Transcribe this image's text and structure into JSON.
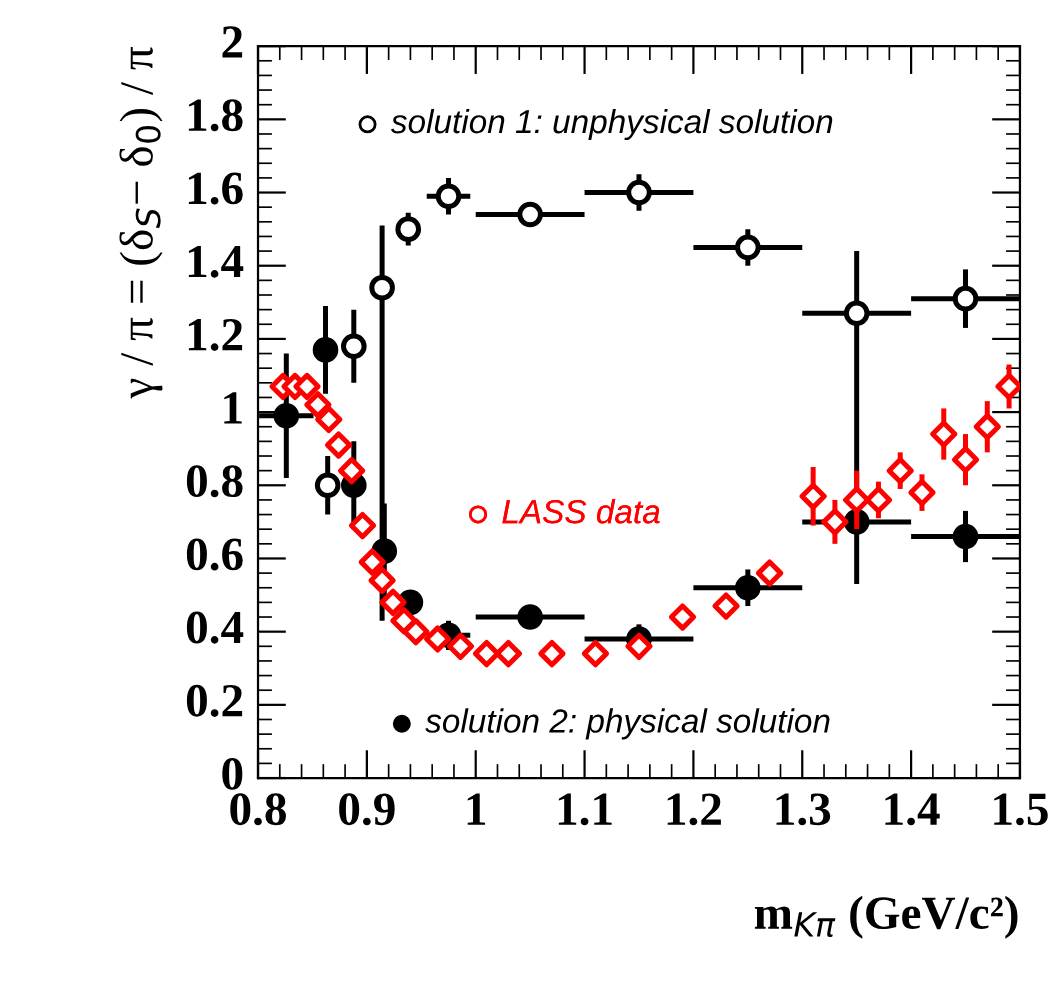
{
  "chart_data": {
    "type": "scatter",
    "xlabel": "m$_{Kπ}$ (GeV/c²)",
    "ylabel": "γ / π = (δ$_{S}$− δ$_{0}$) / π",
    "xlim": [
      0.8,
      1.5
    ],
    "xticks": [
      0.8,
      0.9,
      1,
      1.1,
      1.2,
      1.3,
      1.4,
      1.5
    ],
    "ylim": [
      0,
      2
    ],
    "yticks": [
      0,
      0.2,
      0.4,
      0.6,
      0.8,
      1,
      1.2,
      1.4,
      1.6,
      1.8,
      2
    ],
    "grid": false,
    "legend": "bottom left",
    "series": [
      {
        "name": "solution 1: unphysical solution",
        "color": "#000000",
        "marker": "circle",
        "x": [
          0.864,
          0.888,
          0.914,
          0.938,
          0.975,
          1.05,
          1.15,
          1.25,
          1.35,
          1.45
        ],
        "values": [
          0.8,
          1.18,
          1.34,
          1.5,
          1.59,
          1.54,
          1.6,
          1.45,
          1.27,
          1.31
        ],
        "errors": [
          0.08,
          0.1,
          [
            0.43,
            1.51
          ],
          0.045,
          0.05,
          0.03,
          0.05,
          0.05,
          [
            1.03,
            1.44
          ],
          0.08
        ],
        "xerrors": [
          null,
          null,
          null,
          null,
          0.02,
          0.05,
          0.05,
          0.05,
          0.05,
          0.05
        ]
      },
      {
        "name": "solution 2: physical solution",
        "color": "#000000",
        "marker": "circle",
        "x": [
          0.826,
          0.862,
          0.888,
          0.916,
          0.94,
          0.975,
          1.05,
          1.15,
          1.25,
          1.35,
          1.45
        ],
        "values": [
          0.99,
          1.17,
          0.8,
          0.62,
          0.48,
          0.39,
          0.44,
          0.38,
          0.52,
          0.7,
          0.66
        ],
        "errors": [
          0.17,
          0.12,
          0.12,
          0.13,
          0.03,
          0.04,
          0.03,
          0.04,
          0.05,
          [
            0.53,
            1.03
          ],
          0.07
        ],
        "xerrors": [
          0.025,
          null,
          null,
          null,
          null,
          0.02,
          0.05,
          0.05,
          0.05,
          0.05,
          0.05
        ]
      },
      {
        "name": "LASS data",
        "color": "#ff0000",
        "marker": "diamond",
        "x": [
          0.823,
          0.834,
          0.845,
          0.855,
          0.865,
          0.874,
          0.886,
          0.896,
          0.905,
          0.914,
          0.924,
          0.934,
          0.945,
          0.965,
          0.986,
          1.01,
          1.03,
          1.07,
          1.11,
          1.15,
          1.19,
          1.23,
          1.27,
          1.31,
          1.33,
          1.35,
          1.37,
          1.39,
          1.41,
          1.43,
          1.45,
          1.47,
          1.49
        ],
        "values": [
          1.07,
          1.07,
          1.07,
          1.02,
          0.98,
          0.91,
          0.84,
          0.69,
          0.59,
          0.54,
          0.48,
          0.43,
          0.4,
          0.38,
          0.36,
          0.34,
          0.34,
          0.34,
          0.34,
          0.36,
          0.44,
          0.47,
          0.56,
          0.77,
          0.7,
          0.76,
          0.76,
          0.84,
          0.78,
          0.94,
          0.87,
          0.96,
          1.07
        ],
        "errors": [
          null,
          null,
          null,
          null,
          null,
          null,
          null,
          null,
          null,
          null,
          null,
          null,
          null,
          null,
          null,
          null,
          null,
          null,
          null,
          null,
          null,
          null,
          null,
          0.08,
          0.06,
          0.08,
          0.05,
          0.05,
          0.05,
          0.07,
          0.07,
          0.07,
          0.06
        ]
      }
    ]
  }
}
